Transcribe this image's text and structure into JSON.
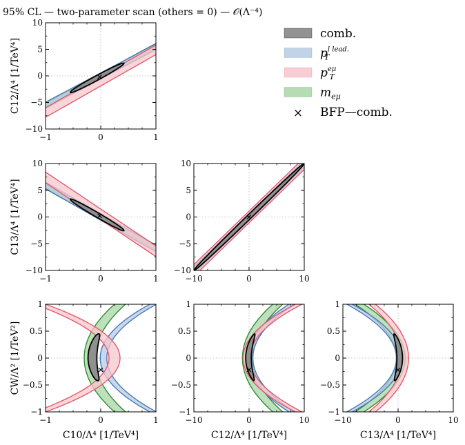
{
  "title": "95% CL — two-parameter scan (others = 0) — 𝒪(Λ⁻⁴)",
  "colors": {
    "comb_fill": "#8c8c8c",
    "comb_edge": "#000000",
    "ptlead_fill": "#b7cbe3",
    "ptlead_edge": "#4a7ab8",
    "ptemu_fill": "#f7c6cc",
    "ptemu_edge": "#e05a6a",
    "memu_fill": "#a9d6a6",
    "memu_edge": "#2e8b35"
  },
  "legend": {
    "entries": [
      {
        "key": "comb",
        "label": "comb."
      },
      {
        "key": "ptlead",
        "label": "p",
        "sub": "T",
        "sup": "l_lead."
      },
      {
        "key": "ptemu",
        "label": "p",
        "sub": "T",
        "sup": "eμ"
      },
      {
        "key": "memu",
        "label": "m",
        "sub": "eμ"
      },
      {
        "key": "bfp",
        "label": "BFP—comb.",
        "marker": "×"
      }
    ]
  },
  "chart_data": [
    {
      "id": "c12_vs_c10",
      "type": "contour",
      "xlim": [
        -1,
        1
      ],
      "ylim": [
        -10,
        10
      ],
      "xticks": [
        -1,
        0,
        1
      ],
      "yticks": [
        -10,
        -5,
        0,
        5,
        10
      ],
      "xlabel": "",
      "ylabel": "C12/Λ⁴ [1/TeV⁴]",
      "bands": {
        "memu": {
          "slope": 5.6,
          "halfwidth": 0.5
        },
        "ptlead": {
          "slope": 5.5,
          "halfwidth": 0.55
        },
        "ptemu": {
          "slope": 5.9,
          "halfwidth": 0.9,
          "offset": -1.0
        },
        "comb": {
          "slope": 5.6,
          "halfwidth": 0.45,
          "xrange": [
            -0.55,
            0.42
          ]
        }
      },
      "bfp": [
        -0.02,
        -0.2
      ]
    },
    {
      "id": "c13_vs_c10",
      "type": "contour",
      "xlim": [
        -1,
        1
      ],
      "ylim": [
        -10,
        10
      ],
      "xticks": [
        -1,
        0,
        1
      ],
      "yticks": [
        -10,
        -5,
        0,
        5,
        10
      ],
      "xlabel": "",
      "ylabel": "C13/Λ⁴ [1/TeV⁴]",
      "bands": {
        "memu": {
          "slope": -5.8,
          "halfwidth": 0.55
        },
        "ptlead": {
          "slope": -5.9,
          "halfwidth": 0.6
        },
        "ptemu": {
          "slope": -6.9,
          "halfwidth": 1.0,
          "offset": 0.5
        },
        "comb": {
          "slope": -6.0,
          "halfwidth": 0.45,
          "xrange": [
            -0.55,
            0.42
          ]
        }
      },
      "bfp": [
        -0.02,
        0.2
      ]
    },
    {
      "id": "c13_vs_c12",
      "type": "contour",
      "xlim": [
        -10,
        10
      ],
      "ylim": [
        -10,
        10
      ],
      "xticks": [
        -10,
        0,
        10
      ],
      "yticks": [
        -10,
        -5,
        0,
        5,
        10
      ],
      "xlabel": "",
      "ylabel": "",
      "bands": {
        "memu": {
          "slope": 1.0,
          "halfwidth": 0.6
        },
        "ptlead": {
          "slope": 1.0,
          "halfwidth": 0.65
        },
        "ptemu": {
          "slope": 1.0,
          "halfwidth": 1.1
        },
        "comb": {
          "slope": 1.0,
          "halfwidth": 0.5,
          "xrange": [
            -10,
            10
          ]
        }
      },
      "bfp": [
        0.0,
        0.0
      ]
    },
    {
      "id": "cw_vs_c10",
      "type": "contour",
      "xlim": [
        -1,
        1
      ],
      "ylim": [
        -1,
        1
      ],
      "xticks": [
        -1,
        0,
        1
      ],
      "yticks": [
        -1.0,
        -0.5,
        0.0,
        0.5,
        1.0
      ],
      "xlabel": "C10/Λ⁴ [1/TeV⁴]",
      "ylabel": "CW/Λ² [1/TeV²]",
      "arcs": {
        "memu": {
          "apex": -0.2,
          "curv": 0.55,
          "halfwidth": 0.1
        },
        "ptlead": {
          "apex": 0.05,
          "curv": 0.9,
          "halfwidth": 0.06
        },
        "ptemu": {
          "apex": 0.25,
          "curv": -1.35,
          "halfwidth": 0.1
        },
        "comb": {
          "apex": -0.15,
          "curv": 0.55,
          "halfwidth": 0.07,
          "yrange": [
            -0.42,
            0.45
          ]
        }
      },
      "bfp": [
        0.0,
        -0.22
      ]
    },
    {
      "id": "cw_vs_c12",
      "type": "contour",
      "xlim": [
        -10,
        10
      ],
      "ylim": [
        -1,
        1
      ],
      "xticks": [
        -10,
        0,
        10
      ],
      "yticks": [
        -1.0,
        -0.5,
        0.0,
        0.5,
        1.0
      ],
      "xlabel": "C12/Λ⁴ [1/TeV⁴]",
      "ylabel": "",
      "arcs": {
        "memu": {
          "apex": -0.3,
          "curv": 5.5,
          "halfwidth": 0.9
        },
        "ptlead": {
          "apex": 0.2,
          "curv": 7.5,
          "halfwidth": 0.5
        },
        "ptemu": {
          "apex": -0.5,
          "curv": 9.5,
          "halfwidth": 0.6
        },
        "comb": {
          "apex": -0.1,
          "curv": 5.5,
          "halfwidth": 0.5,
          "yrange": [
            -0.42,
            0.45
          ]
        }
      },
      "bfp": [
        0.0,
        -0.22
      ]
    },
    {
      "id": "cw_vs_c13",
      "type": "contour",
      "xlim": [
        -10,
        10
      ],
      "ylim": [
        -1,
        1
      ],
      "xticks": [
        -10,
        0,
        10
      ],
      "yticks": [
        -1.0,
        -0.5,
        0.0,
        0.5,
        1.0
      ],
      "xlabel": "C13/Λ⁴ [1/TeV⁴]",
      "ylabel": "",
      "arcs": {
        "memu": {
          "apex": 0.5,
          "curv": -7.5,
          "halfwidth": 0.8
        },
        "ptlead": {
          "apex": 0.2,
          "curv": -9.0,
          "halfwidth": 0.5
        },
        "ptemu": {
          "apex": 1.3,
          "curv": -6.0,
          "halfwidth": 0.6
        },
        "comb": {
          "apex": 0.3,
          "curv": -5.0,
          "halfwidth": 0.5,
          "yrange": [
            -0.42,
            0.45
          ]
        }
      },
      "bfp": [
        0.0,
        -0.22
      ]
    }
  ]
}
